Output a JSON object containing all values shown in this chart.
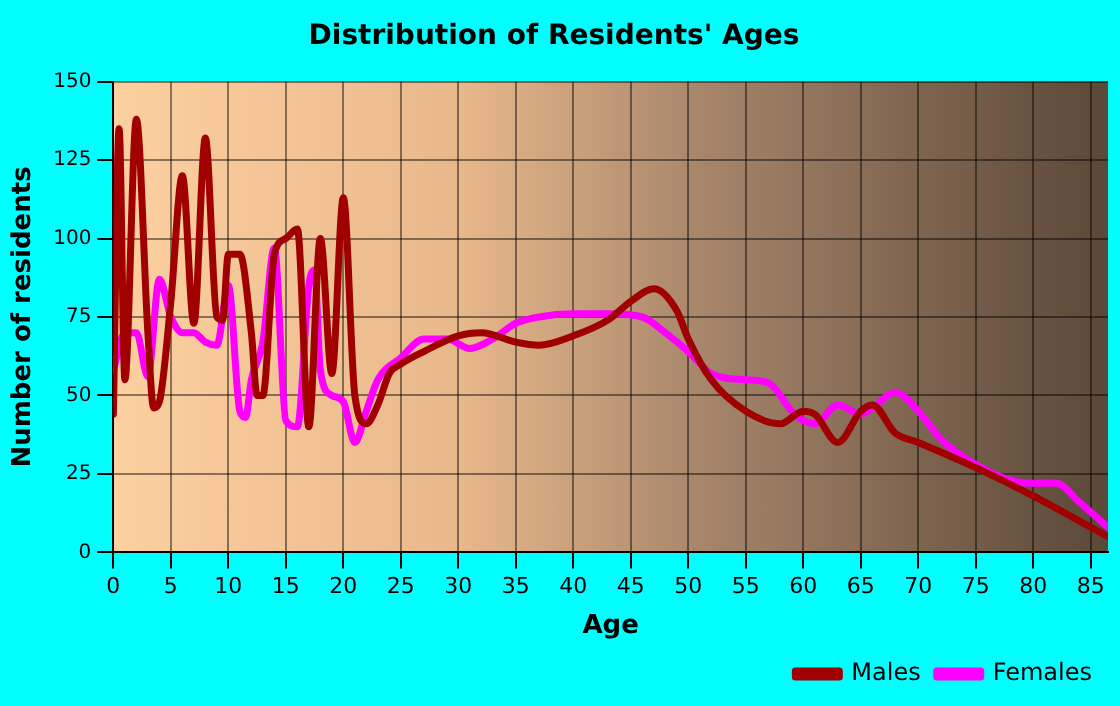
{
  "chart_data": {
    "type": "line",
    "title": "Distribution of Residents' Ages",
    "xlabel": "Age",
    "ylabel": "Number of residents",
    "xlim": [
      0,
      86.5
    ],
    "xticks": [
      0,
      5,
      10,
      15,
      20,
      25,
      30,
      35,
      40,
      45,
      50,
      55,
      60,
      65,
      70,
      75,
      80,
      85
    ],
    "ylim": [
      0,
      150
    ],
    "yticks": [
      0,
      25,
      50,
      75,
      100,
      125,
      150
    ],
    "grid": true,
    "legend": "bottom right",
    "marker": "none",
    "line_style": "solid",
    "series": [
      {
        "name": "Males",
        "color": "#a00000",
        "x": [
          0,
          0.5,
          1,
          2,
          3,
          3.5,
          4,
          5,
          6,
          7,
          8,
          9,
          9.5,
          10,
          11,
          12,
          12.5,
          13,
          14,
          15,
          16,
          17,
          18,
          19,
          20,
          21,
          22,
          23,
          24,
          25,
          27,
          30,
          32,
          35,
          37,
          40,
          43,
          45,
          47,
          49,
          50,
          52,
          55,
          58,
          60,
          61,
          63,
          65,
          66,
          68,
          70,
          75,
          80,
          85,
          86.5
        ],
        "values": [
          44,
          135,
          55,
          138,
          70,
          46,
          48,
          80,
          120,
          73,
          132,
          75,
          74,
          95,
          95,
          70,
          50,
          50,
          95,
          100,
          103,
          40,
          100,
          57,
          113,
          50,
          41,
          47,
          57,
          60,
          64,
          69,
          70,
          67,
          66,
          69,
          74,
          80,
          84,
          77,
          68,
          55,
          45,
          41,
          45,
          44,
          35,
          45,
          47,
          38,
          35,
          27,
          18,
          8,
          5
        ]
      },
      {
        "name": "Females",
        "color": "#ff00ff",
        "x": [
          0,
          1,
          2,
          3,
          4,
          5,
          6,
          7,
          8,
          9,
          10,
          11,
          11.5,
          12,
          13,
          14,
          15,
          16,
          17,
          17.5,
          18,
          19,
          20,
          21,
          22,
          23,
          25,
          27,
          29,
          31,
          33,
          35,
          37,
          40,
          43,
          46,
          48,
          50,
          52,
          55,
          57,
          59,
          60,
          61,
          63,
          65,
          66,
          68,
          70,
          72,
          75,
          78,
          80,
          82,
          84,
          86.5
        ],
        "values": [
          58,
          70,
          70,
          56,
          87,
          75,
          70,
          70,
          67,
          66,
          85,
          45,
          43,
          55,
          67,
          97,
          42,
          40,
          85,
          90,
          58,
          50,
          48,
          35,
          45,
          55,
          62,
          68,
          68,
          65,
          68,
          73,
          75,
          76,
          76,
          75,
          70,
          64,
          57,
          55,
          54,
          45,
          42,
          41,
          47,
          44,
          46,
          51,
          45,
          36,
          28,
          23,
          22,
          22,
          16,
          8
        ]
      }
    ]
  }
}
